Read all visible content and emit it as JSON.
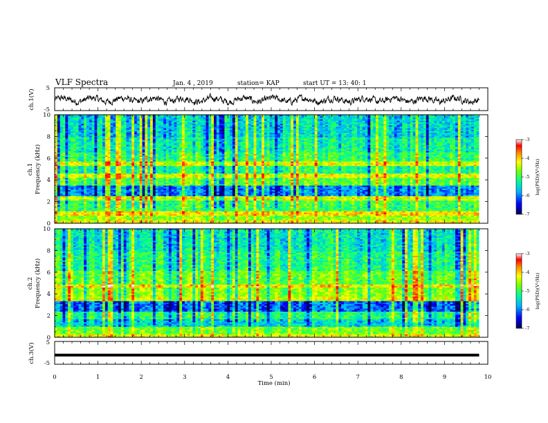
{
  "chart_data": {
    "type": "heatmap",
    "title": "VLF Spectra",
    "header": {
      "date": "Jan. 4 , 2019",
      "station": "station= KAP",
      "start": "start UT =  13: 40: 1"
    },
    "xlabel": "Time (min)",
    "xlim": [
      0,
      10
    ],
    "xticks": [
      "0",
      "1",
      "2",
      "3",
      "4",
      "5",
      "6",
      "7",
      "8",
      "9",
      "10"
    ],
    "data_end_min": 9.8,
    "panels": [
      {
        "id": "ch1-waveform",
        "type": "line",
        "ylabel": "ch.1(V)",
        "ylim": [
          -5,
          5
        ],
        "yticks": [
          "5",
          "-5"
        ],
        "series_color": "#000000"
      },
      {
        "id": "ch1-spectrogram",
        "type": "heatmap",
        "ylabel_top": "ch.1",
        "ylabel": "Frequency (kHz)",
        "ylim": [
          0,
          10
        ],
        "yticks": [
          "10",
          "8",
          "6",
          "4",
          "2",
          "0"
        ],
        "colorbar": {
          "label": "log(PSD)(V²/Hz)",
          "range": [
            -7,
            -3
          ],
          "ticks": [
            "-3",
            "-4",
            "-5",
            "-6",
            "-7"
          ]
        }
      },
      {
        "id": "ch2-spectrogram",
        "type": "heatmap",
        "ylabel_top": "ch.2",
        "ylabel": "Frequency (kHz)",
        "ylim": [
          0,
          10
        ],
        "yticks": [
          "10",
          "8",
          "6",
          "4",
          "2",
          "0"
        ],
        "colorbar": {
          "label": "log(PSD)(V²/Hz)",
          "range": [
            -7,
            -3
          ],
          "ticks": [
            "-3",
            "-4",
            "-5",
            "-6",
            "-7"
          ]
        }
      },
      {
        "id": "ch3-waveform",
        "type": "line",
        "ylabel": "ch.3(V)",
        "ylim": [
          -5,
          5
        ],
        "yticks": [
          "5",
          "-5"
        ],
        "constant_value": -1,
        "series_color": "#000000"
      }
    ],
    "colormap": [
      "#000050",
      "#0000ff",
      "#00b4ff",
      "#00ff96",
      "#78ff00",
      "#ffff00",
      "#ff8c00",
      "#ff0000",
      "#ffffff"
    ]
  }
}
